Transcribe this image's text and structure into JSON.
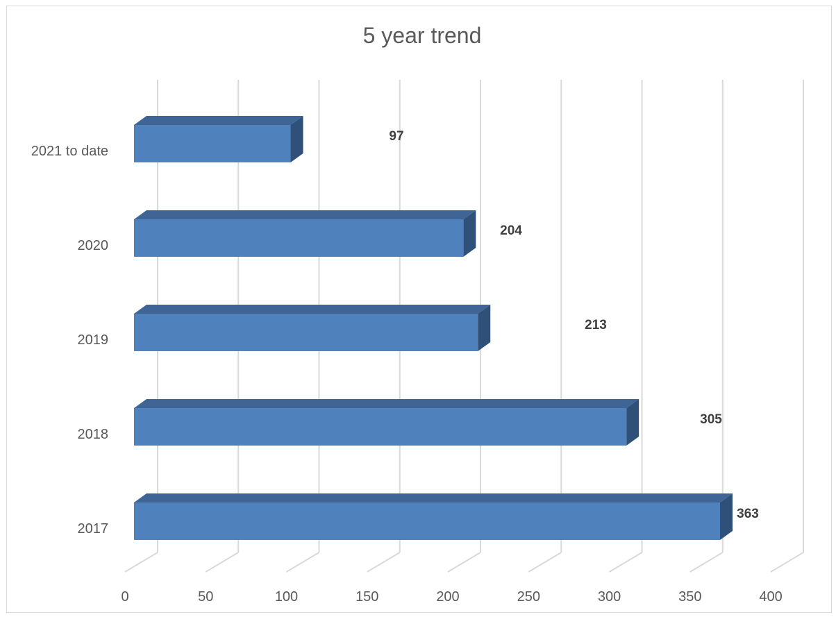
{
  "chart_data": {
    "type": "bar",
    "orientation": "horizontal",
    "style": "3d",
    "title": "5 year trend",
    "categories": [
      "2017",
      "2018",
      "2019",
      "2020",
      "2021 to date"
    ],
    "values": [
      363,
      305,
      213,
      204,
      97
    ],
    "data_labels": [
      "363",
      "305",
      "213",
      "204",
      "97"
    ],
    "xlim": [
      0,
      400
    ],
    "x_ticks": [
      "0",
      "50",
      "100",
      "150",
      "200",
      "250",
      "300",
      "350",
      "400"
    ],
    "grid": true,
    "legend": "none",
    "colors": {
      "bar_front": "#4f81bd",
      "bar_top": "#3e6595",
      "bar_side": "#2f5078",
      "grid": "#d9d9d9",
      "text": "#595959",
      "data_label": "#404040"
    }
  }
}
